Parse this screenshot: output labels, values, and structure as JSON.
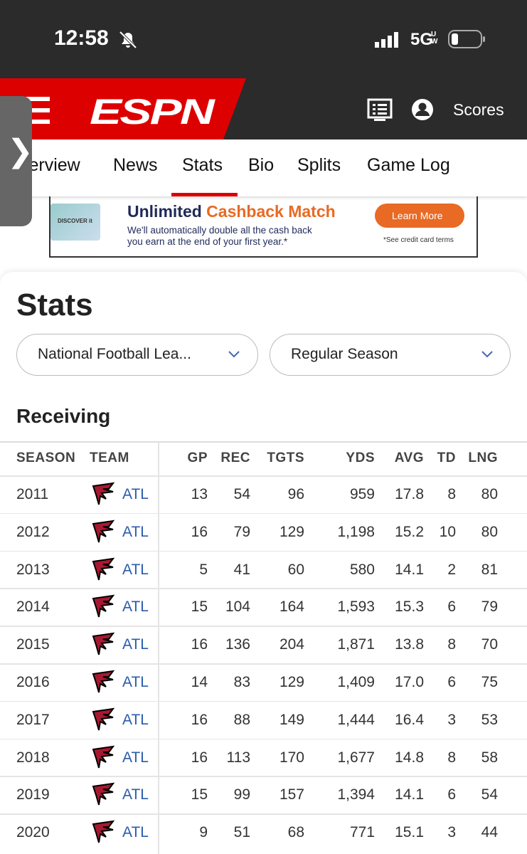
{
  "status_bar": {
    "time": "12:58",
    "network": "5G",
    "network_sub": "UW"
  },
  "header": {
    "logo": "ESPN",
    "scores": "Scores"
  },
  "tabs": [
    "verview",
    "News",
    "Stats",
    "Bio",
    "Splits",
    "Game Log"
  ],
  "ad": {
    "card_brand": "DISCOVER",
    "card_sub": "it",
    "headline_a": "Unlimited",
    "headline_b": "Cashback Match",
    "body_1": "We'll automatically double all the cash back",
    "body_2": "you earn at the end of your first year.*",
    "button": "Learn More",
    "terms": "*See credit card terms"
  },
  "stats": {
    "title": "Stats",
    "league_select": "National Football Lea...",
    "season_select": "Regular Season",
    "section": "Receiving"
  },
  "table": {
    "headers": [
      "SEASON",
      "TEAM",
      "GP",
      "REC",
      "TGTS",
      "YDS",
      "AVG",
      "TD",
      "LNG"
    ],
    "rows": [
      [
        "2011",
        "ATL",
        "13",
        "54",
        "96",
        "959",
        "17.8",
        "8",
        "80"
      ],
      [
        "2012",
        "ATL",
        "16",
        "79",
        "129",
        "1,198",
        "15.2",
        "10",
        "80"
      ],
      [
        "2013",
        "ATL",
        "5",
        "41",
        "60",
        "580",
        "14.1",
        "2",
        "81"
      ],
      [
        "2014",
        "ATL",
        "15",
        "104",
        "164",
        "1,593",
        "15.3",
        "6",
        "79"
      ],
      [
        "2015",
        "ATL",
        "16",
        "136",
        "204",
        "1,871",
        "13.8",
        "8",
        "70"
      ],
      [
        "2016",
        "ATL",
        "14",
        "83",
        "129",
        "1,409",
        "17.0",
        "6",
        "75"
      ],
      [
        "2017",
        "ATL",
        "16",
        "88",
        "149",
        "1,444",
        "16.4",
        "3",
        "53"
      ],
      [
        "2018",
        "ATL",
        "16",
        "113",
        "170",
        "1,677",
        "14.8",
        "8",
        "58"
      ],
      [
        "2019",
        "ATL",
        "15",
        "99",
        "157",
        "1,394",
        "14.1",
        "6",
        "54"
      ],
      [
        "2020",
        "ATL",
        "9",
        "51",
        "68",
        "771",
        "15.1",
        "3",
        "44"
      ]
    ]
  }
}
